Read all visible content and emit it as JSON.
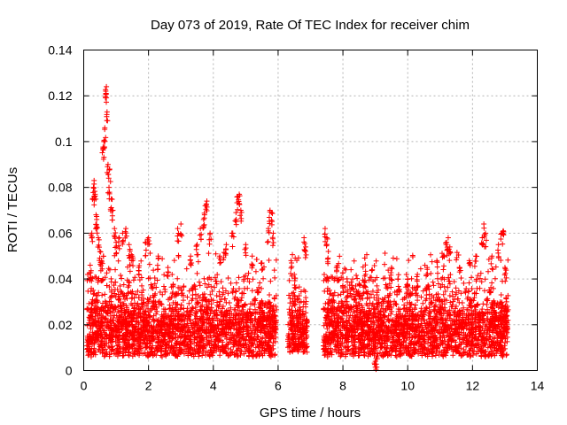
{
  "chart_data": {
    "type": "scatter",
    "title": "Day 073 of 2019, Rate Of TEC Index for receiver chim",
    "xlabel": "GPS time / hours",
    "ylabel": "ROTI / TECUs",
    "xlim": [
      0,
      14
    ],
    "ylim": [
      0,
      0.14
    ],
    "xticks": [
      0,
      2,
      4,
      6,
      8,
      10,
      12,
      14
    ],
    "xtick_labels": [
      "0",
      "2",
      "4",
      "6",
      "8",
      "10",
      "12",
      "14"
    ],
    "yticks": [
      0,
      0.02,
      0.04,
      0.06,
      0.08,
      0.1,
      0.12,
      0.14
    ],
    "ytick_labels": [
      "0",
      "0.02",
      "0.04",
      "0.06",
      "0.08",
      "0.1",
      "0.12",
      "0.14"
    ],
    "grid": true,
    "marker": "+",
    "marker_color": "#ff0000",
    "data_gaps_hours": [
      [
        5.95,
        6.3
      ],
      [
        6.9,
        7.4
      ]
    ],
    "series": [
      {
        "name": "ROTI",
        "points": [
          [
            0.2,
            0.046
          ],
          [
            0.25,
            0.06
          ],
          [
            0.3,
            0.08
          ],
          [
            0.32,
            0.083
          ],
          [
            0.35,
            0.077
          ],
          [
            0.38,
            0.068
          ],
          [
            0.4,
            0.066
          ],
          [
            0.45,
            0.058
          ],
          [
            0.5,
            0.052
          ],
          [
            0.55,
            0.048
          ],
          [
            0.6,
            0.097
          ],
          [
            0.62,
            0.1
          ],
          [
            0.65,
            0.106
          ],
          [
            0.68,
            0.122
          ],
          [
            0.7,
            0.124
          ],
          [
            0.72,
            0.113
          ],
          [
            0.75,
            0.09
          ],
          [
            0.78,
            0.08
          ],
          [
            0.8,
            0.088
          ],
          [
            0.85,
            0.075
          ],
          [
            0.9,
            0.07
          ],
          [
            0.95,
            0.062
          ],
          [
            1.0,
            0.056
          ],
          [
            1.1,
            0.058
          ],
          [
            1.2,
            0.06
          ],
          [
            1.3,
            0.062
          ],
          [
            1.4,
            0.055
          ],
          [
            1.5,
            0.05
          ],
          [
            1.7,
            0.045
          ],
          [
            1.9,
            0.056
          ],
          [
            2.0,
            0.058
          ],
          [
            2.3,
            0.05
          ],
          [
            2.6,
            0.045
          ],
          [
            2.9,
            0.062
          ],
          [
            3.0,
            0.064
          ],
          [
            3.3,
            0.05
          ],
          [
            3.5,
            0.055
          ],
          [
            3.6,
            0.062
          ],
          [
            3.7,
            0.066
          ],
          [
            3.75,
            0.072
          ],
          [
            3.8,
            0.074
          ],
          [
            3.9,
            0.06
          ],
          [
            4.2,
            0.05
          ],
          [
            4.4,
            0.055
          ],
          [
            4.6,
            0.06
          ],
          [
            4.7,
            0.069
          ],
          [
            4.75,
            0.076
          ],
          [
            4.8,
            0.077
          ],
          [
            4.85,
            0.07
          ],
          [
            5.0,
            0.055
          ],
          [
            5.2,
            0.05
          ],
          [
            5.5,
            0.047
          ],
          [
            5.7,
            0.062
          ],
          [
            5.75,
            0.07
          ],
          [
            5.8,
            0.069
          ],
          [
            5.85,
            0.06
          ],
          [
            6.4,
            0.048
          ],
          [
            6.5,
            0.042
          ],
          [
            6.8,
            0.058
          ],
          [
            6.85,
            0.054
          ],
          [
            7.45,
            0.062
          ],
          [
            7.5,
            0.058
          ],
          [
            7.55,
            0.052
          ],
          [
            7.8,
            0.045
          ],
          [
            8.0,
            0.04
          ],
          [
            8.3,
            0.04
          ],
          [
            8.5,
            0.038
          ],
          [
            8.7,
            0.042
          ],
          [
            8.9,
            0.044
          ],
          [
            9.0,
            0.004
          ],
          [
            9.05,
            0.006
          ],
          [
            9.5,
            0.045
          ],
          [
            9.7,
            0.04
          ],
          [
            10.0,
            0.04
          ],
          [
            10.3,
            0.042
          ],
          [
            10.6,
            0.045
          ],
          [
            10.9,
            0.048
          ],
          [
            11.1,
            0.05
          ],
          [
            11.2,
            0.056
          ],
          [
            11.25,
            0.058
          ],
          [
            11.3,
            0.054
          ],
          [
            11.6,
            0.045
          ],
          [
            11.9,
            0.048
          ],
          [
            12.1,
            0.05
          ],
          [
            12.3,
            0.058
          ],
          [
            12.35,
            0.064
          ],
          [
            12.4,
            0.06
          ],
          [
            12.6,
            0.05
          ],
          [
            12.8,
            0.055
          ],
          [
            12.9,
            0.06
          ],
          [
            12.95,
            0.061
          ],
          [
            13.0,
            0.045
          ],
          [
            13.05,
            0.03
          ]
        ],
        "dense_band": {
          "segments": [
            {
              "x_from": 0.1,
              "x_to": 5.95,
              "y_min": 0.006,
              "y_typical_max": 0.035
            },
            {
              "x_from": 6.3,
              "x_to": 6.9,
              "y_min": 0.008,
              "y_typical_max": 0.03
            },
            {
              "x_from": 7.4,
              "x_to": 13.1,
              "y_min": 0.006,
              "y_typical_max": 0.035
            }
          ],
          "typical_center": 0.018
        }
      }
    ]
  }
}
